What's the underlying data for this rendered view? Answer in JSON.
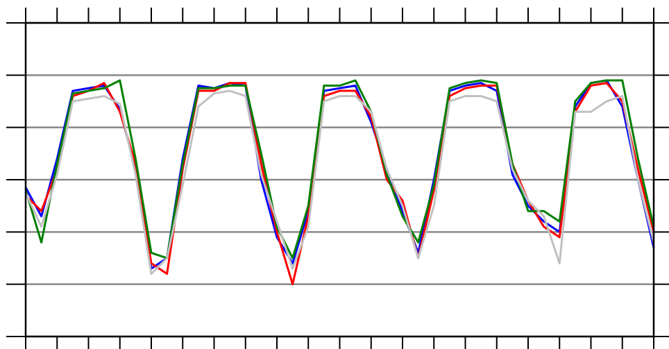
{
  "chart_data": {
    "type": "line",
    "x": [
      0,
      0.5,
      1,
      1.5,
      2,
      2.5,
      3,
      3.5,
      4,
      4.5,
      5,
      5.5,
      6,
      6.5,
      7,
      7.5,
      8,
      8.5,
      9,
      9.5,
      10,
      10.5,
      11,
      11.5,
      12,
      12.5,
      13,
      13.5,
      14,
      14.5,
      15,
      15.5,
      16,
      16.5,
      17,
      17.5,
      18,
      18.5,
      19,
      19.5,
      20
    ],
    "series": [
      {
        "color": "#0000ff",
        "values": [
          2.85,
          2.3,
          3.4,
          4.7,
          4.75,
          4.8,
          4.35,
          3.2,
          1.3,
          1.5,
          3.4,
          4.8,
          4.75,
          4.85,
          4.8,
          3.0,
          1.9,
          1.4,
          2.4,
          4.7,
          4.75,
          4.8,
          4.1,
          3.2,
          2.4,
          1.6,
          3.0,
          4.7,
          4.8,
          4.85,
          4.7,
          3.1,
          2.5,
          2.2,
          2.0,
          4.4,
          4.85,
          4.9,
          4.4,
          3.0,
          1.7
        ]
      },
      {
        "color": "#ff0000",
        "values": [
          2.7,
          2.4,
          3.2,
          4.6,
          4.7,
          4.85,
          4.3,
          3.3,
          1.4,
          1.2,
          3.2,
          4.7,
          4.7,
          4.85,
          4.85,
          3.3,
          2.0,
          1.0,
          2.3,
          4.6,
          4.7,
          4.7,
          4.2,
          3.0,
          2.6,
          1.5,
          2.8,
          4.6,
          4.75,
          4.8,
          4.8,
          3.3,
          2.6,
          2.1,
          1.9,
          4.3,
          4.8,
          4.85,
          4.5,
          3.2,
          2.0
        ]
      },
      {
        "color": "#008000",
        "values": [
          2.8,
          1.8,
          3.3,
          4.65,
          4.7,
          4.75,
          4.9,
          3.4,
          1.6,
          1.5,
          3.3,
          4.75,
          4.75,
          4.8,
          4.8,
          3.5,
          2.1,
          1.5,
          2.5,
          4.8,
          4.8,
          4.9,
          4.3,
          3.1,
          2.3,
          1.8,
          2.9,
          4.75,
          4.85,
          4.9,
          4.85,
          3.3,
          2.4,
          2.4,
          2.2,
          4.5,
          4.85,
          4.9,
          4.9,
          3.4,
          2.1
        ]
      },
      {
        "color": "#c0c0c0",
        "values": [
          2.75,
          2.1,
          3.1,
          4.5,
          4.55,
          4.6,
          4.45,
          3.1,
          1.2,
          1.5,
          2.9,
          4.4,
          4.65,
          4.7,
          4.6,
          3.1,
          2.2,
          1.3,
          2.1,
          4.5,
          4.6,
          4.6,
          4.3,
          3.2,
          2.5,
          1.5,
          2.5,
          4.5,
          4.6,
          4.6,
          4.5,
          3.2,
          2.6,
          2.3,
          1.4,
          4.3,
          4.3,
          4.5,
          4.6,
          3.0,
          1.8
        ]
      }
    ],
    "xlim": [
      0,
      20
    ],
    "xticks": [
      0,
      1,
      2,
      3,
      4,
      5,
      6,
      7,
      8,
      9,
      10,
      11,
      12,
      13,
      14,
      15,
      16,
      17,
      18,
      19,
      20
    ],
    "ylim": [
      0,
      6
    ],
    "yticks": [
      0,
      1,
      2,
      3,
      4,
      5,
      6
    ],
    "grid": true
  }
}
